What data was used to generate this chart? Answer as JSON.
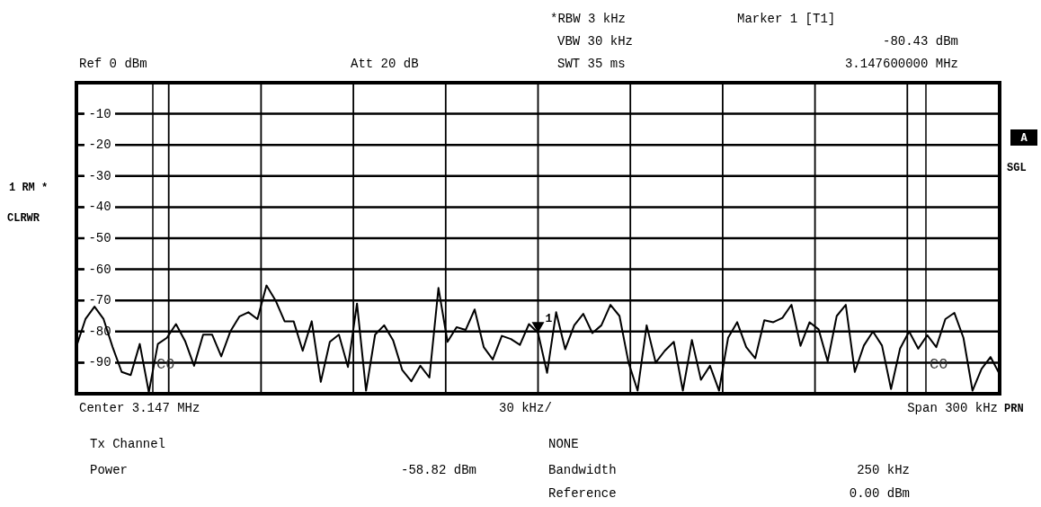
{
  "chart_data": {
    "type": "line",
    "ylim": [
      -100,
      0
    ],
    "categories": [
      null,
      null,
      null,
      null,
      null,
      null,
      null,
      null,
      null,
      null,
      null,
      null,
      null,
      null,
      null,
      null,
      null,
      null,
      null,
      null,
      null,
      null,
      null,
      null,
      null,
      null,
      null,
      null,
      null,
      null,
      null,
      null,
      null,
      null,
      null,
      null,
      null,
      null,
      null,
      null,
      null,
      null,
      null,
      null,
      null,
      null,
      null,
      null,
      null,
      null,
      null,
      null,
      null,
      null,
      null,
      null,
      null,
      null,
      null,
      null,
      null,
      null,
      null,
      null,
      null,
      null,
      null,
      null,
      null,
      null,
      null,
      null,
      null,
      null,
      null,
      null,
      null,
      null,
      null,
      null,
      null,
      null,
      null,
      null,
      null,
      null,
      null,
      null,
      null,
      null,
      null,
      null,
      null,
      null,
      null,
      null,
      null,
      null,
      null,
      null,
      null,
      null,
      null
    ],
    "yticks": [
      -10,
      -20,
      -30,
      -40,
      -50,
      -60,
      -70,
      -80,
      -90
    ],
    "grid": true,
    "legend": false,
    "marker": "none",
    "line_style": "solid",
    "series": [
      {
        "color": "#000000",
        "values": [
          -84.8,
          -76,
          -72,
          -76,
          -85,
          -93,
          -94,
          -84,
          -99.5,
          -84,
          -82,
          -77.6,
          -83,
          -91,
          -81,
          -81,
          -88,
          -80,
          -75.2,
          -73.8,
          -76,
          -65.2,
          -70,
          -76.7,
          -76.7,
          -86.2,
          -76.7,
          -96.2,
          -83.3,
          -81,
          -91.4,
          -71,
          -99,
          -81,
          -78,
          -82.9,
          -92.4,
          -96,
          -91,
          -94.8,
          -66,
          -83.3,
          -78.6,
          -79.5,
          -72.9,
          -85,
          -89,
          -81.4,
          -82.4,
          -84.3,
          -77.6,
          -80.43,
          -93.3,
          -73.8,
          -85.7,
          -78,
          -74.3,
          -80.5,
          -78,
          -71.4,
          -75,
          -90,
          -99,
          -78,
          -90,
          -86.2,
          -83.3,
          -99,
          -82.7,
          -95.5,
          -91,
          -99,
          -82,
          -77,
          -85,
          -88.6,
          -76.4,
          -77,
          -75.6,
          -71.4,
          -84.6,
          -77,
          -79.3,
          -89.6,
          -75,
          -71.4,
          -93,
          -84.5,
          -80,
          -84.5,
          -98.5,
          -85.5,
          -80,
          -85.5,
          -81.2,
          -85,
          -76,
          -74,
          -82,
          -99,
          -92,
          -88.2,
          -93.7
        ]
      }
    ],
    "annotations": [
      "*RBW 3 kHz",
      "VBW 30 kHz",
      "SWT 35 ms",
      "Marker 1 [T1]",
      "-80.43 dBm",
      "3.147600000 MHz",
      "Ref 0 dBm",
      "Att 20 dB",
      "1 RM *",
      "CLRWR",
      "A",
      "SGL",
      "Center 3.147 MHz",
      "30 kHz/",
      "Span 300 kHz",
      "PRN",
      "Tx Channel",
      "Power",
      "-58.82 dBm",
      "NONE",
      "Bandwidth",
      "250 kHz",
      "Reference",
      "0.00 dBm",
      "C0",
      "C0",
      {
        "text": "1",
        "y": -80.43
      }
    ]
  }
}
